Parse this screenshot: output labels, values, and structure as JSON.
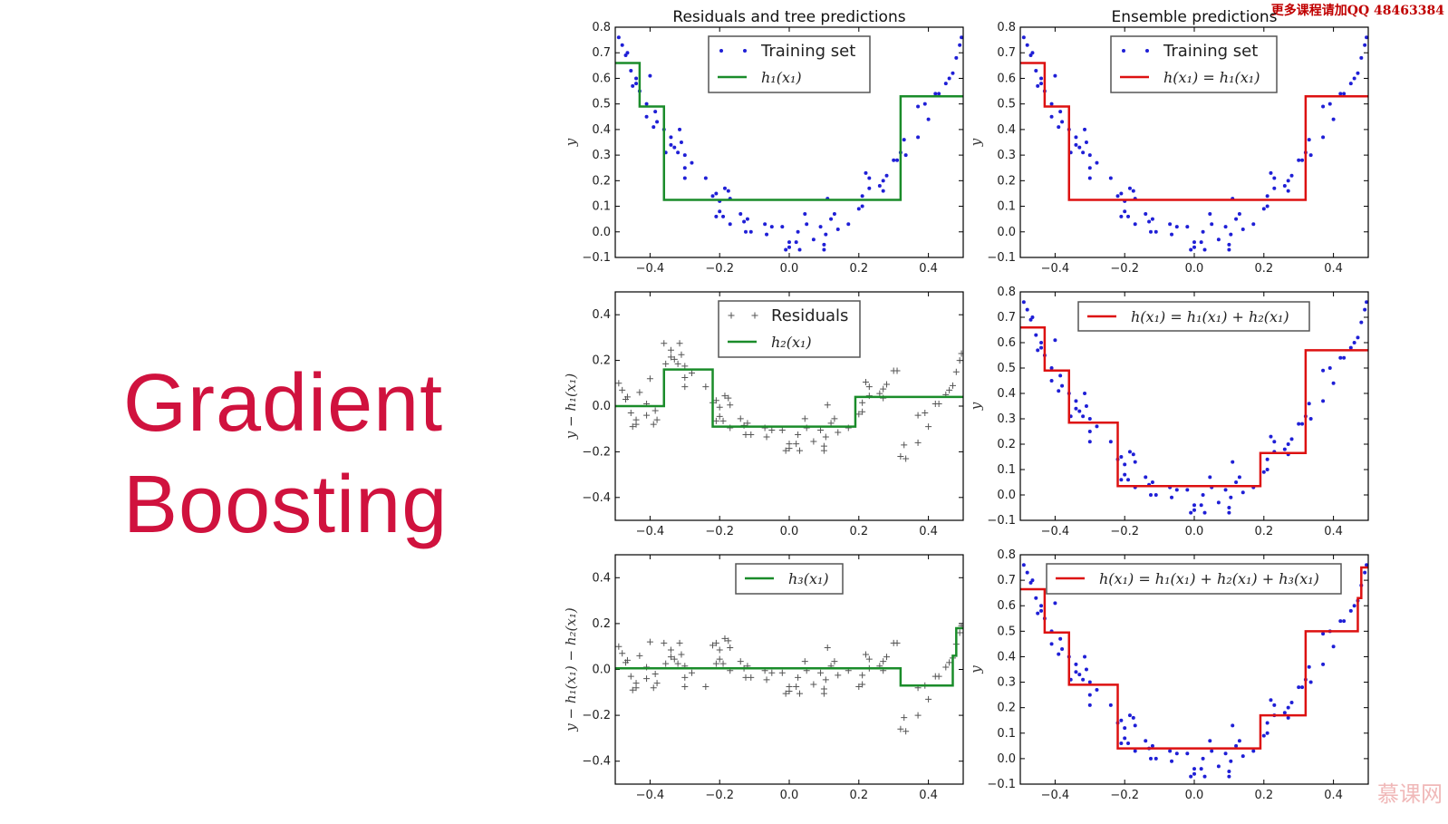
{
  "slide": {
    "title_line1": "Gradient",
    "title_line2": "Boosting"
  },
  "watermark": {
    "top_right": "更多课程请加QQ  48463384",
    "bottom_right": "慕课网"
  },
  "colors": {
    "title": "#d0123e",
    "points": "#1f1fd6",
    "residuals": "#555555",
    "tree": "#1a8c2a",
    "ensemble": "#dd1111"
  },
  "chart_data": {
    "type": "scatter",
    "xlim": [
      -0.5,
      0.5
    ],
    "xticks": [
      -0.4,
      -0.2,
      0.0,
      0.2,
      0.4
    ],
    "training_set": [
      [
        -0.49,
        0.76
      ],
      [
        -0.48,
        0.73
      ],
      [
        -0.47,
        0.69
      ],
      [
        -0.465,
        0.7
      ],
      [
        -0.455,
        0.63
      ],
      [
        -0.45,
        0.57
      ],
      [
        -0.44,
        0.6
      ],
      [
        -0.44,
        0.58
      ],
      [
        -0.43,
        0.55
      ],
      [
        -0.41,
        0.5
      ],
      [
        -0.41,
        0.45
      ],
      [
        -0.4,
        0.61
      ],
      [
        -0.39,
        0.41
      ],
      [
        -0.385,
        0.47
      ],
      [
        -0.38,
        0.43
      ],
      [
        -0.36,
        0.4
      ],
      [
        -0.355,
        0.31
      ],
      [
        -0.34,
        0.37
      ],
      [
        -0.34,
        0.34
      ],
      [
        -0.33,
        0.33
      ],
      [
        -0.32,
        0.31
      ],
      [
        -0.315,
        0.4
      ],
      [
        -0.31,
        0.35
      ],
      [
        -0.3,
        0.3
      ],
      [
        -0.3,
        0.25
      ],
      [
        -0.3,
        0.21
      ],
      [
        -0.28,
        0.27
      ],
      [
        -0.24,
        0.21
      ],
      [
        -0.22,
        0.14
      ],
      [
        -0.21,
        0.06
      ],
      [
        -0.21,
        0.15
      ],
      [
        -0.2,
        0.12
      ],
      [
        -0.2,
        0.08
      ],
      [
        -0.19,
        0.06
      ],
      [
        -0.185,
        0.17
      ],
      [
        -0.175,
        0.16
      ],
      [
        -0.17,
        0.13
      ],
      [
        -0.17,
        0.03
      ],
      [
        -0.14,
        0.07
      ],
      [
        -0.13,
        0.04
      ],
      [
        -0.12,
        0.05
      ],
      [
        -0.125,
        0.0
      ],
      [
        -0.11,
        0.0
      ],
      [
        -0.07,
        0.03
      ],
      [
        -0.065,
        -0.01
      ],
      [
        -0.05,
        0.02
      ],
      [
        -0.02,
        0.02
      ],
      [
        -0.01,
        -0.07
      ],
      [
        0.0,
        -0.04
      ],
      [
        0.0,
        -0.06
      ],
      [
        0.02,
        -0.04
      ],
      [
        0.025,
        0.0
      ],
      [
        0.03,
        -0.07
      ],
      [
        0.045,
        0.07
      ],
      [
        0.05,
        0.03
      ],
      [
        0.07,
        -0.03
      ],
      [
        0.09,
        0.02
      ],
      [
        0.1,
        -0.05
      ],
      [
        0.1,
        -0.07
      ],
      [
        0.105,
        -0.01
      ],
      [
        0.11,
        0.13
      ],
      [
        0.12,
        0.05
      ],
      [
        0.13,
        0.07
      ],
      [
        0.14,
        0.01
      ],
      [
        0.17,
        0.03
      ],
      [
        0.2,
        0.09
      ],
      [
        0.21,
        0.1
      ],
      [
        0.21,
        0.14
      ],
      [
        0.22,
        0.23
      ],
      [
        0.23,
        0.21
      ],
      [
        0.23,
        0.17
      ],
      [
        0.26,
        0.18
      ],
      [
        0.27,
        0.16
      ],
      [
        0.27,
        0.2
      ],
      [
        0.28,
        0.22
      ],
      [
        0.3,
        0.28
      ],
      [
        0.31,
        0.28
      ],
      [
        0.32,
        0.31
      ],
      [
        0.33,
        0.36
      ],
      [
        0.335,
        0.3
      ],
      [
        0.37,
        0.49
      ],
      [
        0.37,
        0.37
      ],
      [
        0.39,
        0.5
      ],
      [
        0.4,
        0.44
      ],
      [
        0.42,
        0.54
      ],
      [
        0.43,
        0.54
      ],
      [
        0.45,
        0.58
      ],
      [
        0.46,
        0.6
      ],
      [
        0.47,
        0.62
      ],
      [
        0.48,
        0.68
      ],
      [
        0.49,
        0.73
      ],
      [
        0.495,
        0.76
      ]
    ],
    "trees": {
      "h1": [
        [
          -0.5,
          -0.43,
          0.66
        ],
        [
          -0.43,
          -0.36,
          0.49
        ],
        [
          -0.36,
          0.32,
          0.125
        ],
        [
          0.32,
          0.5,
          0.53
        ]
      ],
      "h2": [
        [
          -0.5,
          -0.36,
          0.0
        ],
        [
          -0.36,
          -0.22,
          0.16
        ],
        [
          -0.22,
          0.19,
          -0.09
        ],
        [
          0.19,
          0.5,
          0.04
        ]
      ],
      "h3": [
        [
          -0.5,
          0.32,
          0.005
        ],
        [
          0.32,
          0.47,
          -0.07
        ],
        [
          0.47,
          0.48,
          0.06
        ],
        [
          0.48,
          0.5,
          0.18
        ]
      ]
    },
    "plots": [
      {
        "id": "residuals-1",
        "title": "Residuals and tree predictions",
        "ylabel": "y",
        "ylim": [
          -0.1,
          0.8
        ],
        "yticks": [
          -0.1,
          0.0,
          0.1,
          0.2,
          0.3,
          0.4,
          0.5,
          0.6,
          0.7,
          0.8
        ],
        "points": "training",
        "trees": [
          "h1"
        ],
        "line": "tree",
        "legend": [
          "Training set",
          "h₁(x₁)"
        ]
      },
      {
        "id": "ensemble-1",
        "title": "Ensemble predictions",
        "ylabel": "y",
        "ylim": [
          -0.1,
          0.8
        ],
        "yticks": [
          -0.1,
          0.0,
          0.1,
          0.2,
          0.3,
          0.4,
          0.5,
          0.6,
          0.7,
          0.8
        ],
        "points": "training",
        "trees": [
          "h1"
        ],
        "line": "ensemble",
        "legend": [
          "Training set",
          "h(x₁) = h₁(x₁)"
        ]
      },
      {
        "id": "residuals-2",
        "title": "",
        "ylabel": "y − h₁(x₁)",
        "ylim": [
          -0.5,
          0.5
        ],
        "yticks": [
          -0.4,
          -0.2,
          0.0,
          0.2,
          0.4
        ],
        "points": "residual1",
        "trees": [
          "h2"
        ],
        "line": "tree",
        "legend": [
          "Residuals",
          "h₂(x₁)"
        ]
      },
      {
        "id": "ensemble-2",
        "title": "",
        "ylabel": "y",
        "ylim": [
          -0.1,
          0.8
        ],
        "yticks": [
          -0.1,
          0.0,
          0.1,
          0.2,
          0.3,
          0.4,
          0.5,
          0.6,
          0.7,
          0.8
        ],
        "points": "training",
        "trees": [
          "h1",
          "h2"
        ],
        "line": "ensemble",
        "legend": [
          "h(x₁) = h₁(x₁) + h₂(x₁)"
        ]
      },
      {
        "id": "residuals-3",
        "title": "",
        "ylabel": "y − h₁(x₁) − h₂(x₁)",
        "ylim": [
          -0.5,
          0.5
        ],
        "yticks": [
          -0.4,
          -0.2,
          0.0,
          0.2,
          0.4
        ],
        "points": "residual2",
        "trees": [
          "h3"
        ],
        "line": "tree",
        "legend": [
          "h₃(x₁)"
        ]
      },
      {
        "id": "ensemble-3",
        "title": "",
        "ylabel": "y",
        "ylim": [
          -0.1,
          0.8
        ],
        "yticks": [
          -0.1,
          0.0,
          0.1,
          0.2,
          0.3,
          0.4,
          0.5,
          0.6,
          0.7,
          0.8
        ],
        "points": "training",
        "trees": [
          "h1",
          "h2",
          "h3"
        ],
        "line": "ensemble",
        "legend": [
          "h(x₁) = h₁(x₁) + h₂(x₁) + h₃(x₁)"
        ]
      }
    ]
  }
}
